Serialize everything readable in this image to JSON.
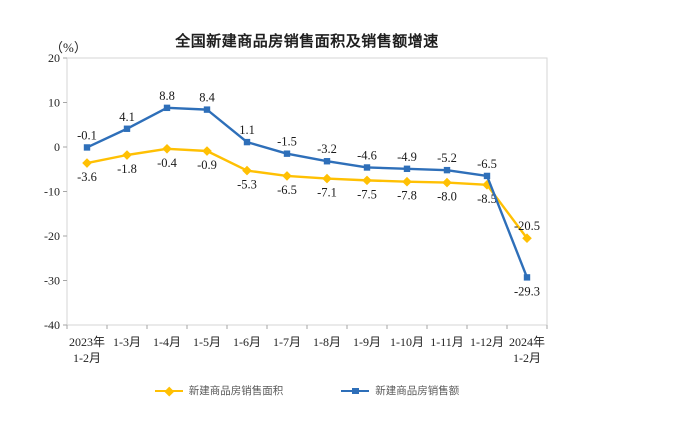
{
  "chart_data": {
    "type": "line",
    "title": "全国新建商品房销售面积及销售额增速",
    "unit_label": "（%）",
    "categories": [
      "2023年\n1-2月",
      "1-3月",
      "1-4月",
      "1-5月",
      "1-6月",
      "1-7月",
      "1-8月",
      "1-9月",
      "1-10月",
      "1-11月",
      "1-12月",
      "2024年\n1-2月"
    ],
    "series": [
      {
        "name": "新建商品房销售面积",
        "marker": "diamond",
        "color": "#FFC003",
        "values": [
          -3.6,
          -1.8,
          -0.4,
          -0.9,
          -5.3,
          -6.5,
          -7.1,
          -7.5,
          -7.8,
          -8.0,
          -8.5,
          -20.5
        ],
        "label_position": "below",
        "last_label_position": "above"
      },
      {
        "name": "新建商品房销售额",
        "marker": "square",
        "color": "#2E6FB9",
        "values": [
          -0.1,
          4.1,
          8.8,
          8.4,
          1.1,
          -1.5,
          -3.2,
          -4.6,
          -4.9,
          -5.2,
          -6.5,
          -29.3
        ],
        "label_position": "above",
        "last_label_position": "below"
      }
    ],
    "y_axis": {
      "min": -40,
      "max": 20,
      "step": 10,
      "ticks": [
        20,
        10,
        0,
        -10,
        -20,
        -30,
        -40
      ]
    },
    "legend_position": "bottom",
    "grid": false
  },
  "style_colors": {
    "plot_border": "#D6D6D6",
    "axis_line": "#BFBFBF",
    "tick_mark": "#A6A6A6",
    "tick_label": "#1f1f1f",
    "data_label": "#1a1a1a",
    "legend_text": "#595959",
    "title_text": "#1f1f1f"
  }
}
